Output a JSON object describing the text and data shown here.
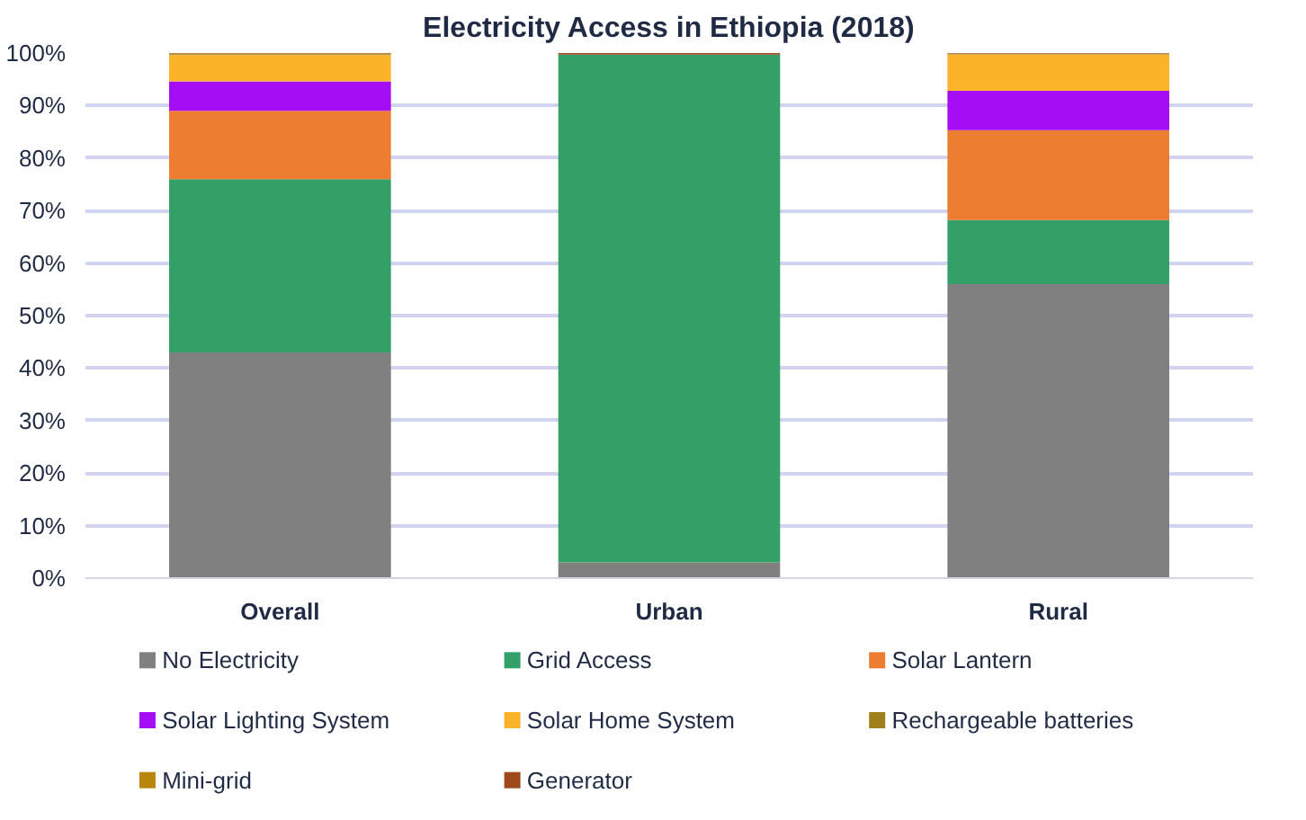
{
  "chart_data": {
    "type": "bar",
    "title": "Electricity Access in Ethiopia (2018)",
    "stacked": true,
    "categories": [
      "Overall",
      "Urban",
      "Rural"
    ],
    "series": [
      {
        "name": "No Electricity",
        "color": "#808080",
        "values": [
          43,
          3,
          56
        ]
      },
      {
        "name": "Grid Access",
        "color": "#33a067",
        "values": [
          33,
          96.7,
          12.2
        ]
      },
      {
        "name": "Solar Lantern",
        "color": "#ed7d31",
        "values": [
          13,
          0,
          17.1
        ]
      },
      {
        "name": "Solar Lighting System",
        "color": "#a50ef5",
        "values": [
          5.6,
          0,
          7.5
        ]
      },
      {
        "name": "Solar Home System",
        "color": "#fbb42a",
        "values": [
          5,
          0,
          6.9
        ]
      },
      {
        "name": "Rechargeable batteries",
        "color": "#a0801a",
        "values": [
          0.2,
          0,
          0.1
        ]
      },
      {
        "name": "Mini-grid",
        "color": "#b8860b",
        "values": [
          0.1,
          0,
          0.1
        ]
      },
      {
        "name": "Generator",
        "color": "#9c4a1a",
        "values": [
          0.1,
          0.3,
          0.1
        ]
      }
    ],
    "ylim": [
      0,
      100
    ],
    "yticks": [
      {
        "value": 0,
        "label": "0%"
      },
      {
        "value": 10,
        "label": "10%"
      },
      {
        "value": 20,
        "label": "20%"
      },
      {
        "value": 30,
        "label": "30%"
      },
      {
        "value": 40,
        "label": "40%"
      },
      {
        "value": 50,
        "label": "50%"
      },
      {
        "value": 60,
        "label": "60%"
      },
      {
        "value": 70,
        "label": "70%"
      },
      {
        "value": 80,
        "label": "80%"
      },
      {
        "value": 90,
        "label": "90%"
      },
      {
        "value": 100,
        "label": "100%"
      }
    ],
    "grid": "y",
    "legend": "bottom"
  }
}
